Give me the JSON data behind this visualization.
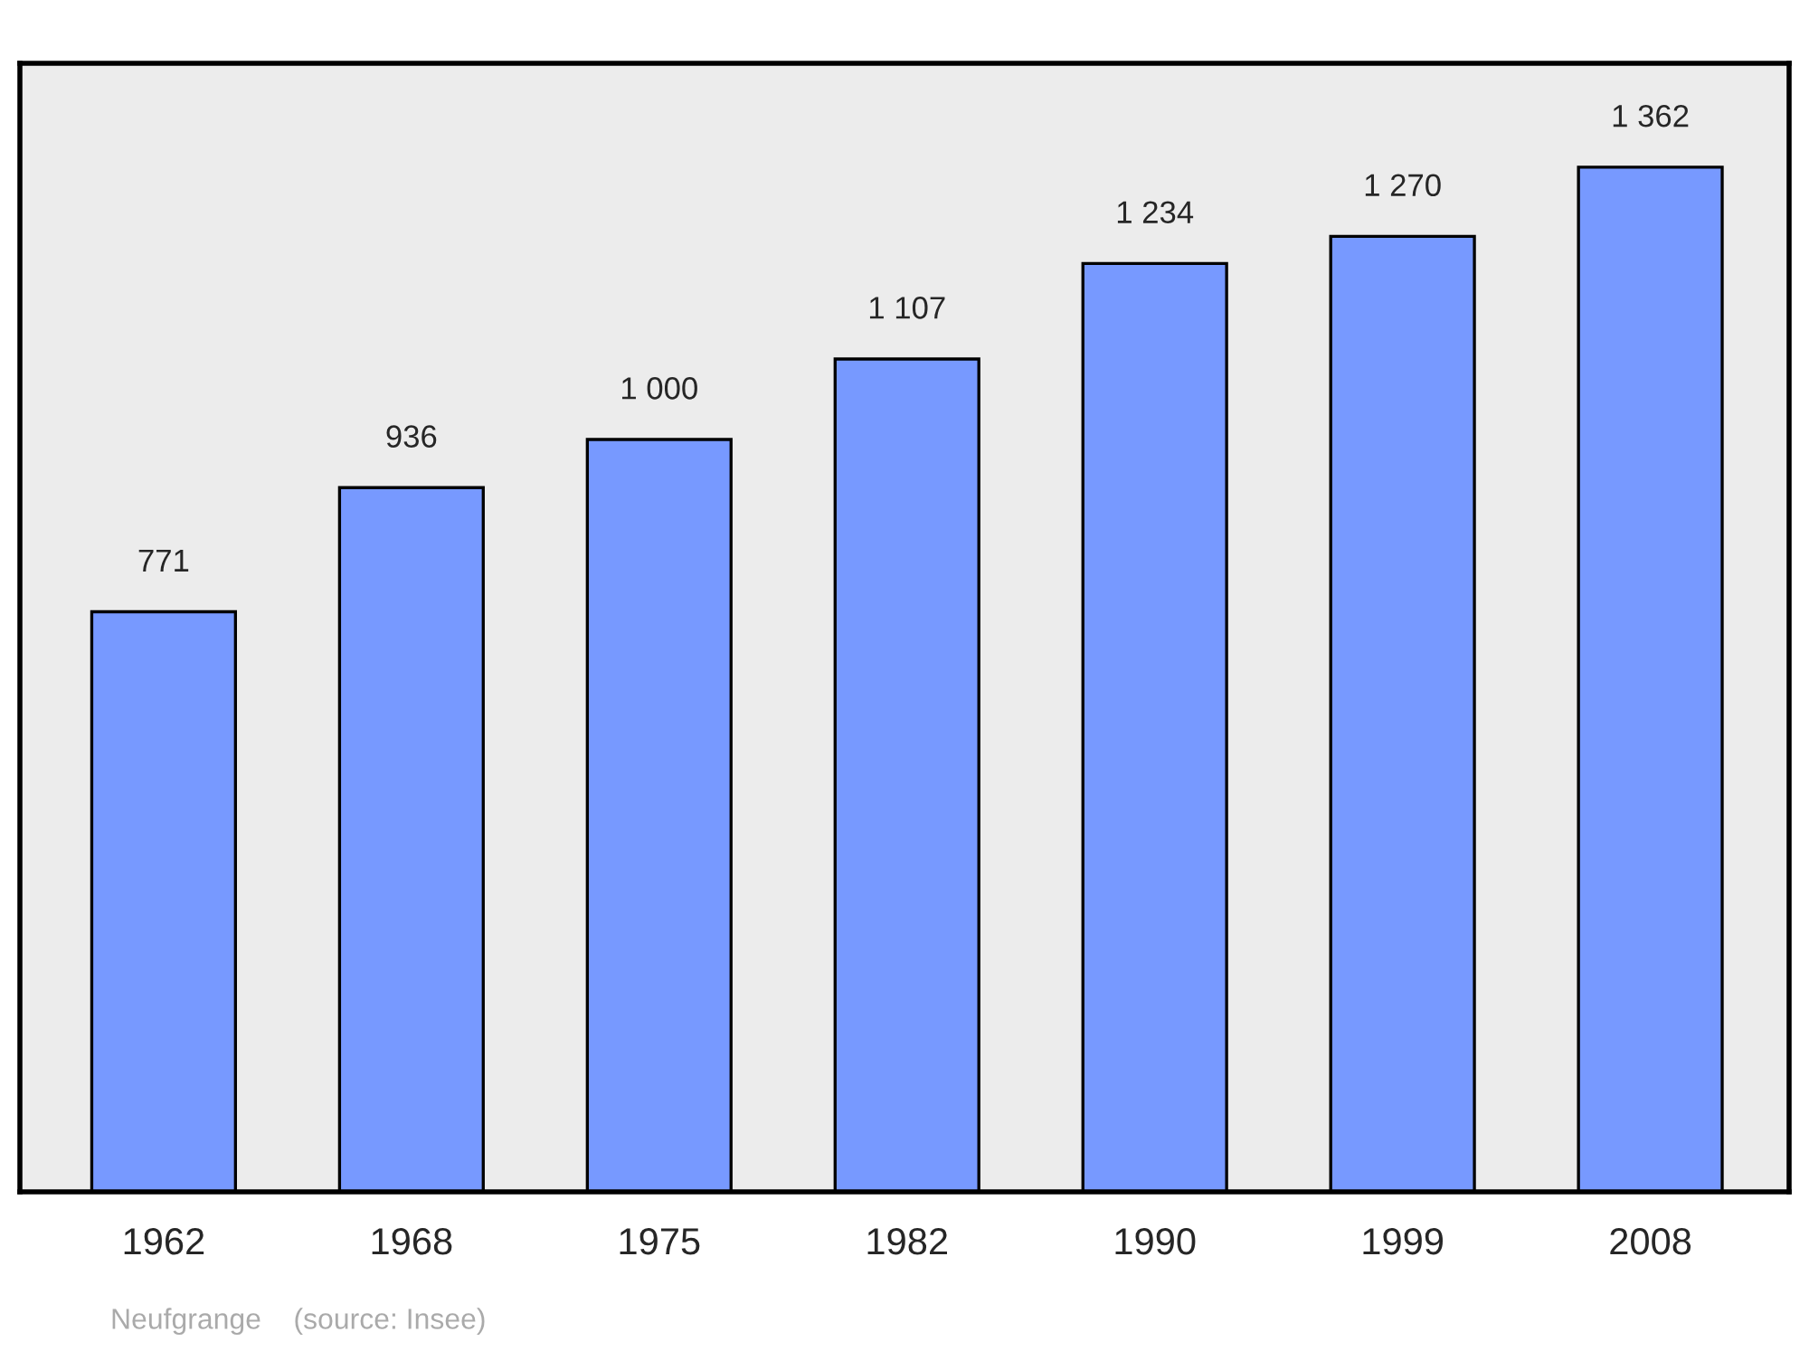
{
  "chart_data": {
    "type": "bar",
    "categories": [
      "1962",
      "1968",
      "1975",
      "1982",
      "1990",
      "1999",
      "2008"
    ],
    "values": [
      771,
      936,
      1000,
      1107,
      1234,
      1270,
      1362
    ],
    "value_labels": [
      "771",
      "936",
      "1 000",
      "1 107",
      "1 234",
      "1 270",
      "1 362"
    ],
    "color": "#7799ff",
    "ylim": [
      0,
      1500
    ],
    "tick_labels": "x",
    "grid": false,
    "legend": false,
    "annotations": [
      "Neufgrange    (source: Insee)"
    ]
  }
}
